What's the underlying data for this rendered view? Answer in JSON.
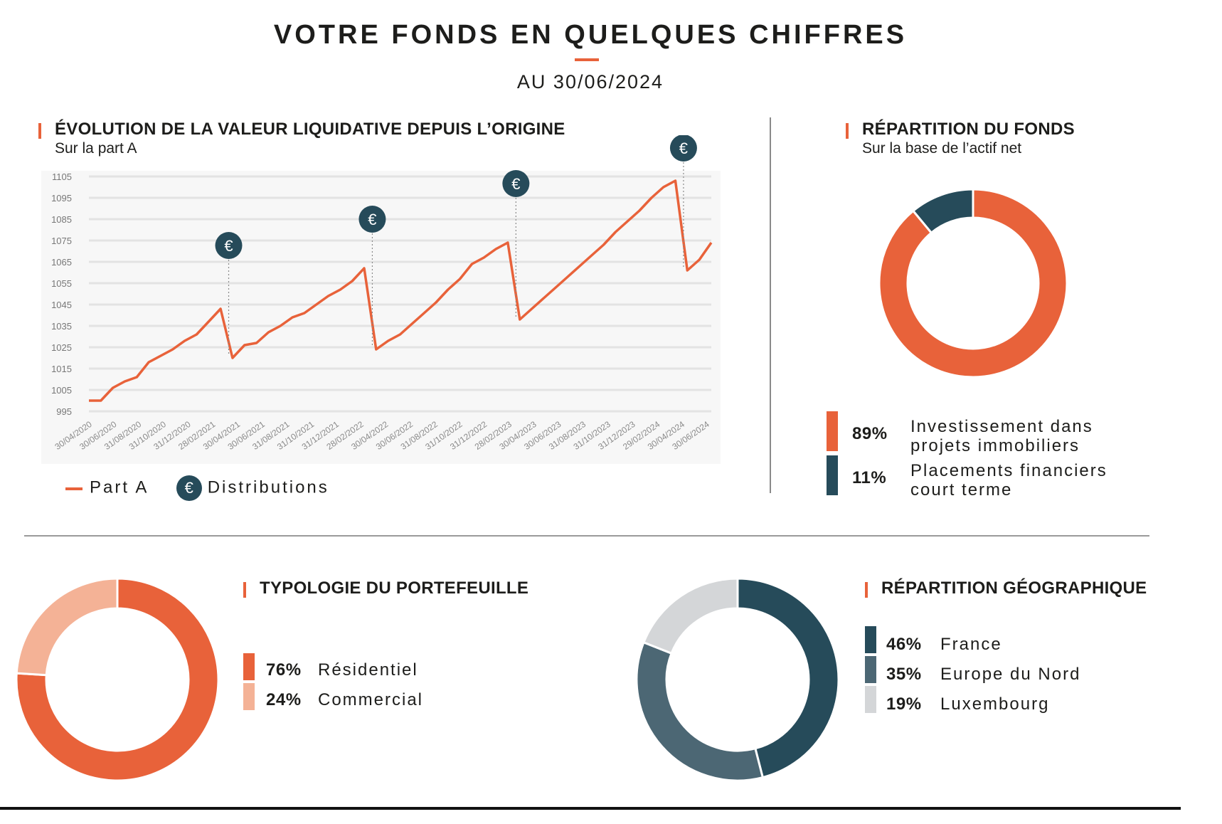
{
  "header": {
    "title": "VOTRE FONDS EN QUELQUES CHIFFRES",
    "subtitle": "AU 30/06/2024"
  },
  "colors": {
    "accent": "#e8623a",
    "dark": "#264b5a",
    "mid": "#4c6774",
    "light_grey": "#d4d6d8",
    "light_orange": "#f4b296"
  },
  "sections": {
    "evolution": {
      "title": "ÉVOLUTION DE LA VALEUR LIQUIDATIVE DEPUIS L’ORIGINE",
      "subtitle": "Sur la part A"
    },
    "repartition": {
      "title": "RÉPARTITION DU FONDS",
      "subtitle": "Sur la base de l’actif net"
    },
    "typologie": {
      "title": "TYPOLOGIE DU PORTEFEUILLE"
    },
    "geo": {
      "title": "RÉPARTITION GÉOGRAPHIQUE"
    }
  },
  "line_legend": {
    "series": "Part A",
    "distributions": "Distributions",
    "euro_symbol": "€"
  },
  "chart_data": [
    {
      "type": "line",
      "ylim": [
        995,
        1105
      ],
      "y_ticks": [
        995,
        1005,
        1015,
        1025,
        1035,
        1045,
        1055,
        1065,
        1075,
        1085,
        1095,
        1105
      ],
      "x_tick_labels": [
        "30/04/2020",
        "30/06/2020",
        "31/08/2020",
        "31/10/2020",
        "31/12/2020",
        "28/02/2021",
        "30/04/2021",
        "30/06/2021",
        "31/08/2021",
        "31/10/2021",
        "31/12/2021",
        "28/02/2022",
        "30/04/2022",
        "30/06/2022",
        "31/08/2022",
        "31/10/2022",
        "31/12/2022",
        "28/02/2023",
        "30/04/2023",
        "30/06/2023",
        "31/08/2023",
        "31/10/2023",
        "31/12/2023",
        "29/02/2024",
        "30/04/2024",
        "30/06/2024"
      ],
      "series": [
        {
          "name": "Part A",
          "values": [
            1000,
            1000,
            1006,
            1009,
            1011,
            1018,
            1021,
            1024,
            1028,
            1031,
            1037,
            1043,
            1020,
            1026,
            1027,
            1032,
            1035,
            1039,
            1041,
            1045,
            1049,
            1052,
            1056,
            1062,
            1024,
            1028,
            1031,
            1036,
            1041,
            1046,
            1052,
            1057,
            1064,
            1067,
            1071,
            1074,
            1038,
            1043,
            1048,
            1053,
            1058,
            1063,
            1068,
            1073,
            1079,
            1084,
            1089,
            1095,
            1100,
            1103,
            1061,
            1066,
            1074
          ]
        }
      ],
      "distributions": [
        {
          "x": "30/06/2021"
        },
        {
          "x": "30/06/2022"
        },
        {
          "x": "30/06/2023"
        },
        {
          "x": "30/06/2024"
        }
      ]
    },
    {
      "type": "pie",
      "donut": true,
      "slices": [
        {
          "pct": "89%",
          "value": 89,
          "label": "Investissement dans projets immobiliers",
          "color": "#e8623a"
        },
        {
          "pct": "11%",
          "value": 11,
          "label": "Placements financiers court terme",
          "color": "#264b5a"
        }
      ]
    },
    {
      "type": "pie",
      "donut": true,
      "slices": [
        {
          "pct": "76%",
          "value": 76,
          "label": "Résidentiel",
          "color": "#e8623a"
        },
        {
          "pct": "24%",
          "value": 24,
          "label": "Commercial",
          "color": "#f4b296"
        }
      ]
    },
    {
      "type": "pie",
      "donut": true,
      "slices": [
        {
          "pct": "46%",
          "value": 46,
          "label": "France",
          "color": "#264b5a"
        },
        {
          "pct": "35%",
          "value": 35,
          "label": "Europe du Nord",
          "color": "#4c6774"
        },
        {
          "pct": "19%",
          "value": 19,
          "label": "Luxembourg",
          "color": "#d4d6d8"
        }
      ]
    }
  ]
}
